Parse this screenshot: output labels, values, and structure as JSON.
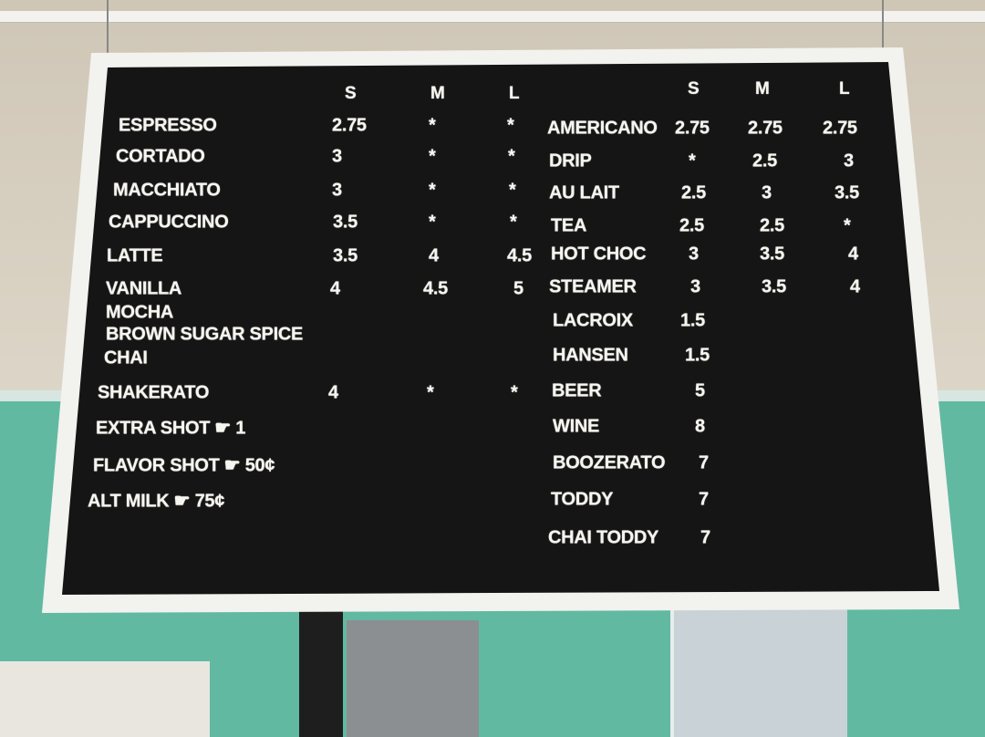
{
  "board": {
    "left_headers": [
      "S",
      "M",
      "L"
    ],
    "right_headers": [
      "S",
      "M",
      "L"
    ],
    "left_items": [
      {
        "name": "ESPRESSO",
        "s": "2.75",
        "m": "*",
        "l": "*"
      },
      {
        "name": "CORTADO",
        "s": "3",
        "m": "*",
        "l": "*"
      },
      {
        "name": "MACCHIATO",
        "s": "3",
        "m": "*",
        "l": "*"
      },
      {
        "name": "CAPPUCCINO",
        "s": "3.5",
        "m": "*",
        "l": "*"
      },
      {
        "name": "LATTE",
        "s": "3.5",
        "m": "4",
        "l": "4.5"
      },
      {
        "name": "VANILLA",
        "s": "4",
        "m": "4.5",
        "l": "5"
      },
      {
        "name": "MOCHA",
        "s": "",
        "m": "",
        "l": ""
      },
      {
        "name": "BROWN SUGAR SPICE",
        "s": "",
        "m": "",
        "l": ""
      },
      {
        "name": "CHAI",
        "s": "",
        "m": "",
        "l": ""
      },
      {
        "name": "SHAKERATO",
        "s": "4",
        "m": "*",
        "l": "*"
      },
      {
        "name": "EXTRA SHOT ☛ 1",
        "s": "",
        "m": "",
        "l": ""
      },
      {
        "name": "FLAVOR SHOT ☛ 50¢",
        "s": "",
        "m": "",
        "l": ""
      },
      {
        "name": "ALT MILK ☛ 75¢",
        "s": "",
        "m": "",
        "l": ""
      }
    ],
    "right_items": [
      {
        "name": "AMERICANO",
        "s": "2.75",
        "m": "2.75",
        "l": "2.75"
      },
      {
        "name": "DRIP",
        "s": "*",
        "m": "2.5",
        "l": "3"
      },
      {
        "name": "AU LAIT",
        "s": "2.5",
        "m": "3",
        "l": "3.5"
      },
      {
        "name": "TEA",
        "s": "2.5",
        "m": "2.5",
        "l": "*"
      },
      {
        "name": "HOT CHOC",
        "s": "3",
        "m": "3.5",
        "l": "4"
      },
      {
        "name": "STEAMER",
        "s": "3",
        "m": "3.5",
        "l": "4"
      },
      {
        "name": "LACROIX",
        "s": "1.5",
        "m": "",
        "l": ""
      },
      {
        "name": "HANSEN",
        "s": "1.5",
        "m": "",
        "l": ""
      },
      {
        "name": "BEER",
        "s": "5",
        "m": "",
        "l": ""
      },
      {
        "name": "WINE",
        "s": "8",
        "m": "",
        "l": ""
      },
      {
        "name": "BOOZERATO",
        "s": "7",
        "m": "",
        "l": ""
      },
      {
        "name": "TODDY",
        "s": "7",
        "m": "",
        "l": ""
      },
      {
        "name": "CHAI TODDY",
        "s": "7",
        "m": "",
        "l": ""
      }
    ]
  },
  "colors": {
    "board": "#151515",
    "frame": "#f2f2ee",
    "wall": "#62b9a2",
    "letters": "#f7f5ef"
  }
}
